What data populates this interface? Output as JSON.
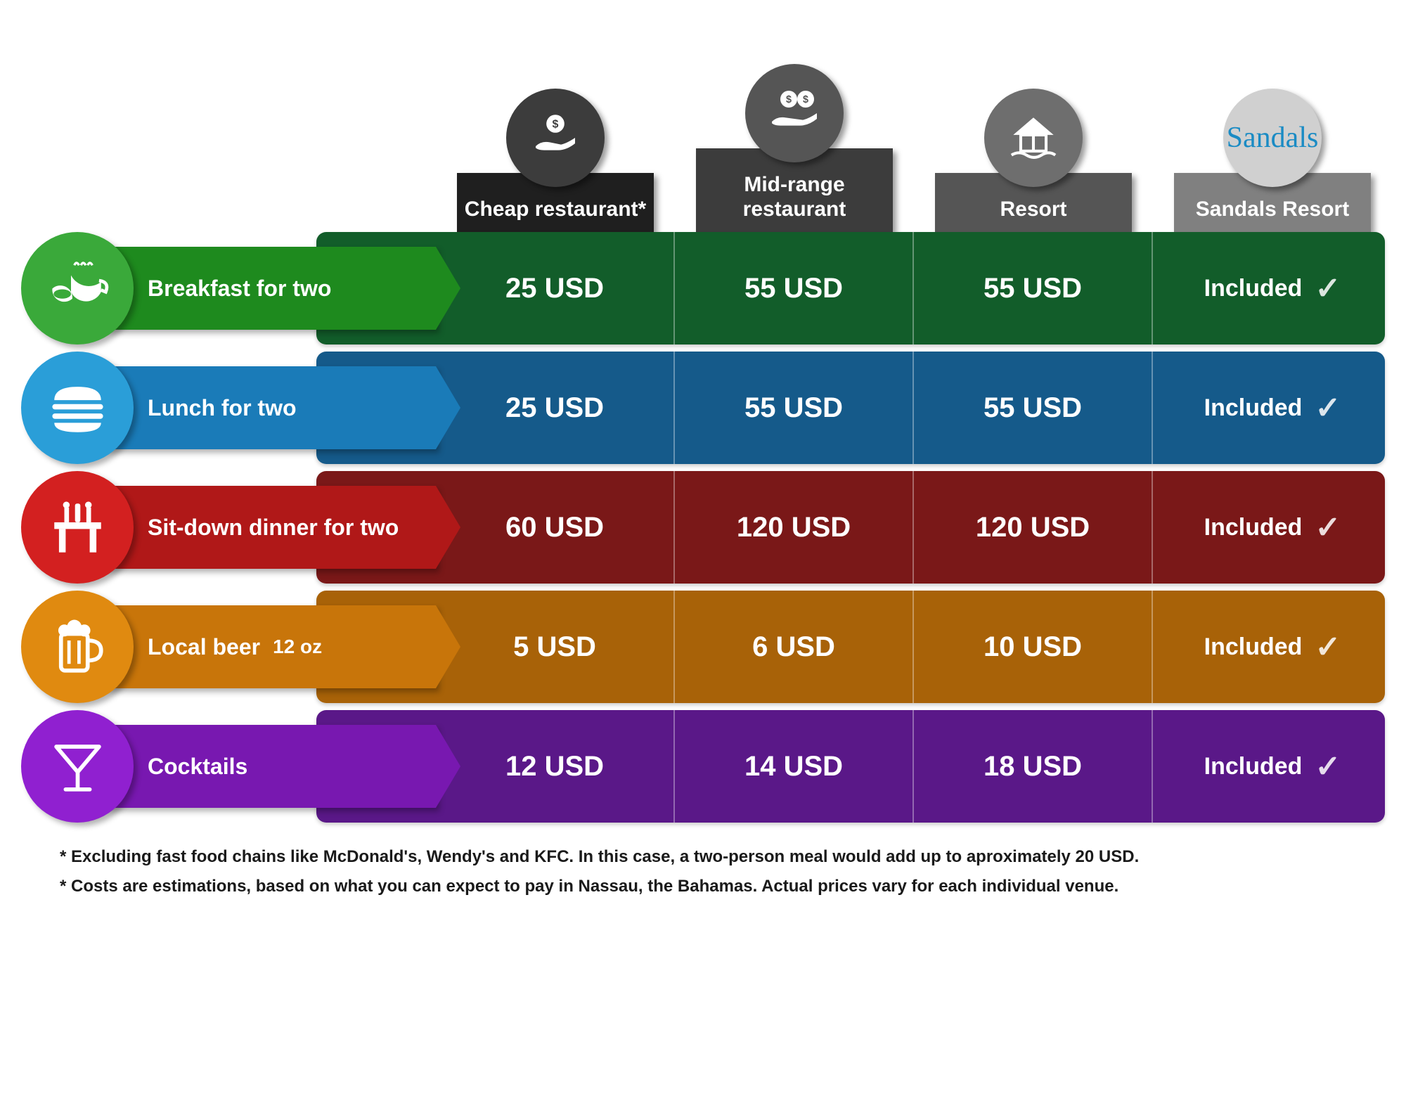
{
  "columns": [
    {
      "label": "Cheap restaurant*",
      "icon": "money-hand-single",
      "circle_color": "#3c3c3c",
      "box_color": "#1f1f1f"
    },
    {
      "label": "Mid-range restaurant",
      "icon": "money-hand-double",
      "circle_color": "#555555",
      "box_color": "#3c3c3c"
    },
    {
      "label": "Resort",
      "icon": "bungalow",
      "circle_color": "#6e6e6e",
      "box_color": "#555555"
    },
    {
      "label": "Sandals Resort",
      "icon": "sandals-logo",
      "circle_color": "#d0d0d0",
      "box_color": "#808080"
    }
  ],
  "rows": [
    {
      "label": "Breakfast for two",
      "secondary_label": "",
      "icon": "breakfast",
      "icon_circle_color": "#3aa93a",
      "label_box_color": "#1e8a1e",
      "body_color": "#125d2a",
      "values": [
        "25 USD",
        "55 USD",
        "55 USD",
        "Included"
      ]
    },
    {
      "label": "Lunch for two",
      "secondary_label": "",
      "icon": "burger",
      "icon_circle_color": "#2a9ed8",
      "label_box_color": "#1a7bb8",
      "body_color": "#155a8a",
      "values": [
        "25 USD",
        "55 USD",
        "55 USD",
        "Included"
      ]
    },
    {
      "label": "Sit-down dinner for two",
      "secondary_label": "",
      "icon": "dinner",
      "icon_circle_color": "#d32020",
      "label_box_color": "#b01818",
      "body_color": "#7a1818",
      "values": [
        "60 USD",
        "120 USD",
        "120 USD",
        "Included"
      ]
    },
    {
      "label": "Local beer",
      "secondary_label": "12 oz",
      "icon": "beer",
      "icon_circle_color": "#e08a10",
      "label_box_color": "#c8750a",
      "body_color": "#a86208",
      "values": [
        "5 USD",
        "6 USD",
        "10 USD",
        "Included"
      ]
    },
    {
      "label": "Cocktails",
      "secondary_label": "",
      "icon": "cocktail",
      "icon_circle_color": "#9020d0",
      "label_box_color": "#7818b0",
      "body_color": "#5a1888",
      "values": [
        "12 USD",
        "14 USD",
        "18 USD",
        "Included"
      ]
    }
  ],
  "footnotes": [
    "* Excluding fast food chains like McDonald's, Wendy's and KFC. In this case, a two-person meal would add up to aproximately 20 USD.",
    "* Costs are estimations, based on what you can expect to pay in Nassau, the Bahamas. Actual prices vary for each individual venue."
  ],
  "sandals_brand_text": "Sandals",
  "included_symbol": "✓"
}
